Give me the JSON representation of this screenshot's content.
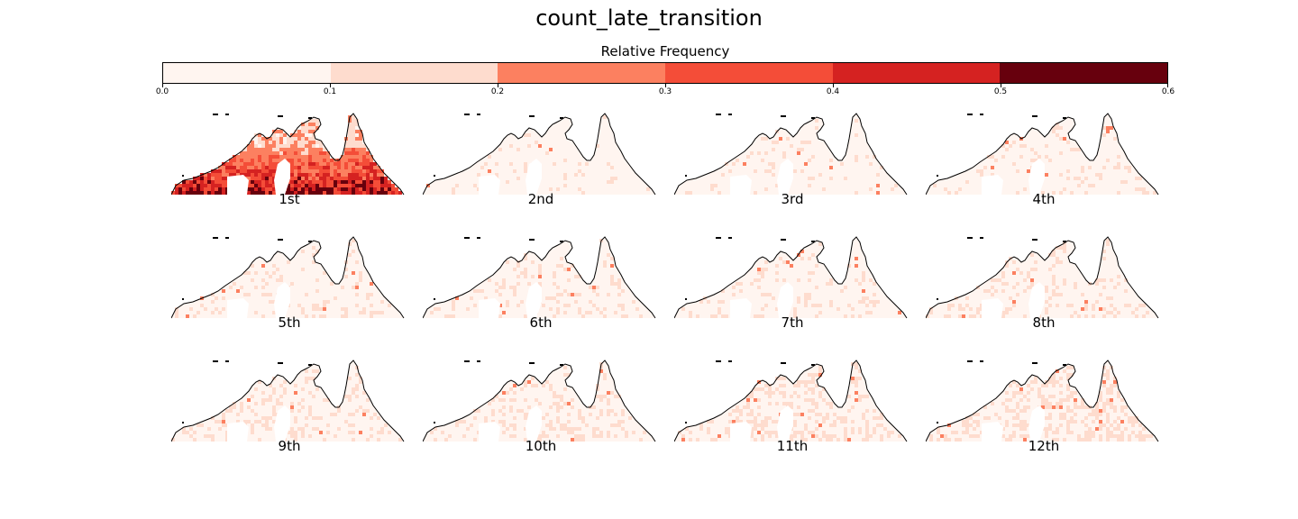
{
  "figure": {
    "title": "count_late_transition"
  },
  "colorbar": {
    "label": "Relative Frequency",
    "colors": [
      "#fff5f0",
      "#fedcce",
      "#fc8060",
      "#f44d38",
      "#d52221",
      "#67000d"
    ],
    "ticks": [
      "0.0",
      "0.1",
      "0.2",
      "0.3",
      "0.4",
      "0.5",
      "0.6"
    ]
  },
  "chart_data": {
    "type": "heatmap",
    "title": "count_late_transition",
    "colorbar_label": "Relative Frequency",
    "value_range": [
      0.0,
      0.6
    ],
    "bins": [
      0.0,
      0.1,
      0.2,
      0.3,
      0.4,
      0.5,
      0.6
    ],
    "panels": [
      {
        "label": "1st",
        "pattern": "high",
        "typical_value": 0.35
      },
      {
        "label": "2nd",
        "pattern": "low",
        "typical_value": 0.02
      },
      {
        "label": "3rd",
        "pattern": "low",
        "typical_value": 0.03
      },
      {
        "label": "4th",
        "pattern": "low",
        "typical_value": 0.03
      },
      {
        "label": "5th",
        "pattern": "low",
        "typical_value": 0.04
      },
      {
        "label": "6th",
        "pattern": "low",
        "typical_value": 0.04
      },
      {
        "label": "7th",
        "pattern": "low",
        "typical_value": 0.04
      },
      {
        "label": "8th",
        "pattern": "low",
        "typical_value": 0.05
      },
      {
        "label": "9th",
        "pattern": "low",
        "typical_value": 0.05
      },
      {
        "label": "10th",
        "pattern": "low",
        "typical_value": 0.07
      },
      {
        "label": "11th",
        "pattern": "low",
        "typical_value": 0.08
      },
      {
        "label": "12th",
        "pattern": "low",
        "typical_value": 0.09
      }
    ]
  }
}
